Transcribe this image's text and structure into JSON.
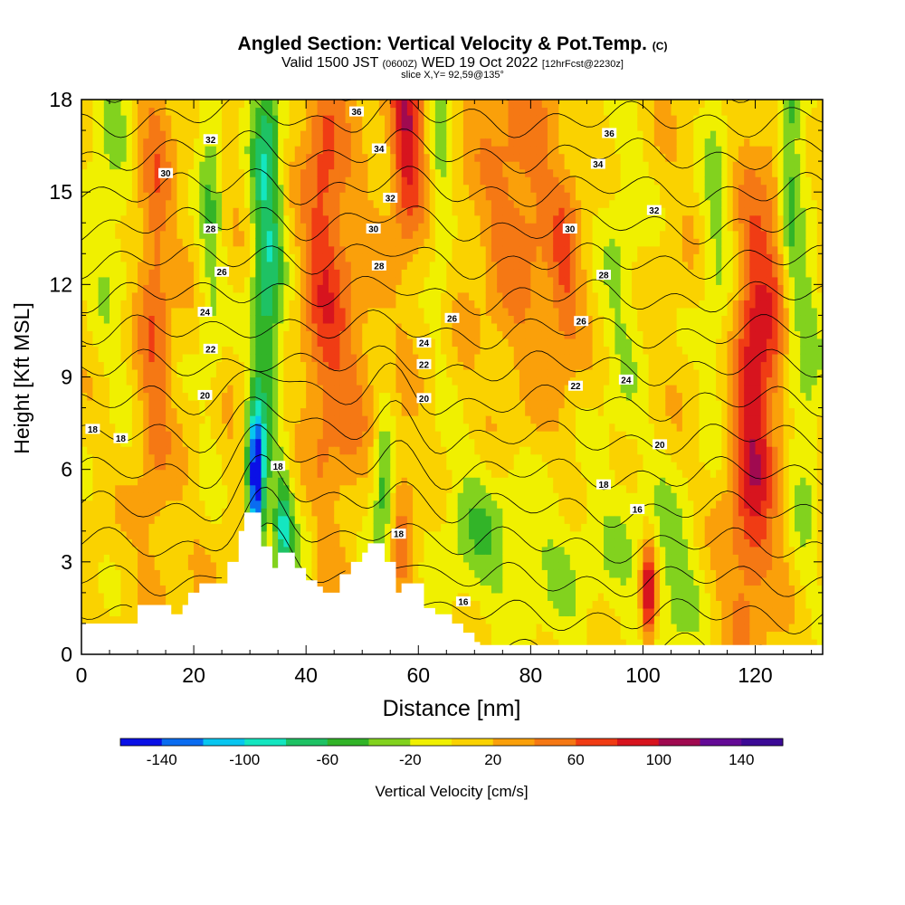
{
  "header": {
    "title": "Angled Section: Vertical Velocity & Pot.Temp.",
    "title_suffix": "(C)",
    "valid_a": "Valid 1500 JST",
    "valid_b": "(0600Z)",
    "valid_c": "WED 19 Oct 2022",
    "valid_d": "[12hrFcst@2230z]",
    "slice": "slice X,Y= 92,59@135°"
  },
  "chart_data": {
    "type": "heatmap",
    "xlabel": "Distance [nm]",
    "ylabel": "Height [Kft MSL]",
    "xlim": [
      0,
      132
    ],
    "ylim": [
      0,
      18
    ],
    "x_ticks": [
      0,
      20,
      40,
      60,
      80,
      100,
      120
    ],
    "y_ticks": [
      0,
      3,
      6,
      9,
      12,
      15,
      18
    ],
    "colorbar": {
      "label": "Vertical Velocity [cm/s]",
      "bounds": [
        -160,
        -140,
        -120,
        -100,
        -80,
        -60,
        -40,
        -20,
        0,
        20,
        40,
        60,
        80,
        100,
        120,
        140,
        160
      ],
      "colors": [
        "#0a10e6",
        "#0a6cf0",
        "#08c6f0",
        "#14e6c0",
        "#1ec264",
        "#32b428",
        "#82d21e",
        "#f0f000",
        "#fad200",
        "#faa00a",
        "#f57814",
        "#f03c14",
        "#d7141e",
        "#a00a50",
        "#640a96",
        "#3c0a96"
      ],
      "tick_labels": [
        -140,
        -100,
        -60,
        -20,
        20,
        60,
        100,
        140
      ]
    },
    "terrain": [
      [
        0,
        1.0
      ],
      [
        8,
        1.0
      ],
      [
        10,
        1.6
      ],
      [
        14,
        1.6
      ],
      [
        16,
        1.3
      ],
      [
        18,
        1.6
      ],
      [
        19,
        2.0
      ],
      [
        21,
        2.3
      ],
      [
        25,
        2.3
      ],
      [
        26,
        3.0
      ],
      [
        28,
        4.0
      ],
      [
        29,
        4.6
      ],
      [
        31,
        4.6
      ],
      [
        32,
        3.5
      ],
      [
        34,
        2.8
      ],
      [
        35,
        3.3
      ],
      [
        37,
        3.3
      ],
      [
        38,
        2.8
      ],
      [
        40,
        2.4
      ],
      [
        42,
        2.2
      ],
      [
        43,
        2.0
      ],
      [
        45,
        2.0
      ],
      [
        46,
        2.6
      ],
      [
        48,
        3.0
      ],
      [
        50,
        3.3
      ],
      [
        51,
        3.6
      ],
      [
        53,
        3.6
      ],
      [
        54,
        3.0
      ],
      [
        56,
        2.0
      ],
      [
        57,
        2.3
      ],
      [
        59,
        2.3
      ],
      [
        61,
        1.5
      ],
      [
        63,
        1.3
      ],
      [
        66,
        1.0
      ],
      [
        68,
        0.7
      ],
      [
        70,
        0.4
      ],
      [
        71,
        0.3
      ],
      [
        132,
        0.3
      ]
    ],
    "contour_labels": [
      {
        "x": 2,
        "y": 7.3,
        "v": "18"
      },
      {
        "x": 7,
        "y": 7.0,
        "v": "18"
      },
      {
        "x": 35,
        "y": 6.1,
        "v": "18"
      },
      {
        "x": 56.5,
        "y": 3.9,
        "v": "18"
      },
      {
        "x": 93,
        "y": 5.5,
        "v": "18"
      },
      {
        "x": 99,
        "y": 4.7,
        "v": "16"
      },
      {
        "x": 68,
        "y": 1.7,
        "v": "16"
      },
      {
        "x": 22,
        "y": 8.4,
        "v": "20"
      },
      {
        "x": 61,
        "y": 8.3,
        "v": "20"
      },
      {
        "x": 103,
        "y": 6.8,
        "v": "20"
      },
      {
        "x": 23,
        "y": 9.9,
        "v": "22"
      },
      {
        "x": 61,
        "y": 9.4,
        "v": "22"
      },
      {
        "x": 88,
        "y": 8.7,
        "v": "22"
      },
      {
        "x": 22,
        "y": 11.1,
        "v": "24"
      },
      {
        "x": 61,
        "y": 10.1,
        "v": "24"
      },
      {
        "x": 97,
        "y": 8.9,
        "v": "24"
      },
      {
        "x": 25,
        "y": 12.4,
        "v": "26"
      },
      {
        "x": 66,
        "y": 10.9,
        "v": "26"
      },
      {
        "x": 89,
        "y": 10.8,
        "v": "26"
      },
      {
        "x": 23,
        "y": 13.8,
        "v": "28"
      },
      {
        "x": 53,
        "y": 12.6,
        "v": "28"
      },
      {
        "x": 93,
        "y": 12.3,
        "v": "28"
      },
      {
        "x": 15,
        "y": 15.6,
        "v": "30"
      },
      {
        "x": 52,
        "y": 13.8,
        "v": "30"
      },
      {
        "x": 87,
        "y": 13.8,
        "v": "30"
      },
      {
        "x": 23,
        "y": 16.7,
        "v": "32"
      },
      {
        "x": 55,
        "y": 14.8,
        "v": "32"
      },
      {
        "x": 102,
        "y": 14.4,
        "v": "32"
      },
      {
        "x": 53,
        "y": 16.4,
        "v": "34"
      },
      {
        "x": 92,
        "y": 15.9,
        "v": "34"
      },
      {
        "x": 49,
        "y": 17.6,
        "v": "36"
      },
      {
        "x": 94,
        "y": 16.9,
        "v": "36"
      }
    ]
  }
}
